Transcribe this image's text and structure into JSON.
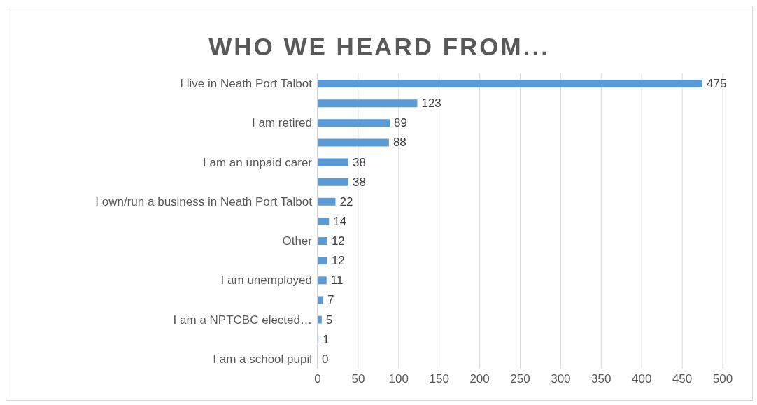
{
  "chart_data": {
    "type": "bar",
    "orientation": "horizontal",
    "title": "WHO WE HEARD FROM...",
    "categories": [
      "I live in Neath Port Talbot",
      null,
      "I am retired",
      null,
      "I am an unpaid carer",
      null,
      "I own/run a business in Neath Port Talbot",
      null,
      "Other",
      null,
      "I am unemployed",
      null,
      "I am a NPTCBC elected…",
      null,
      "I am a school pupil"
    ],
    "values": [
      475,
      123,
      89,
      88,
      38,
      38,
      22,
      14,
      12,
      12,
      11,
      7,
      5,
      1,
      0
    ],
    "color": "#5b9bd5",
    "xlim": [
      0,
      500
    ],
    "xticks": [
      0,
      50,
      100,
      150,
      200,
      250,
      300,
      350,
      400,
      450,
      500
    ],
    "grid": "x",
    "data_labels": true
  }
}
